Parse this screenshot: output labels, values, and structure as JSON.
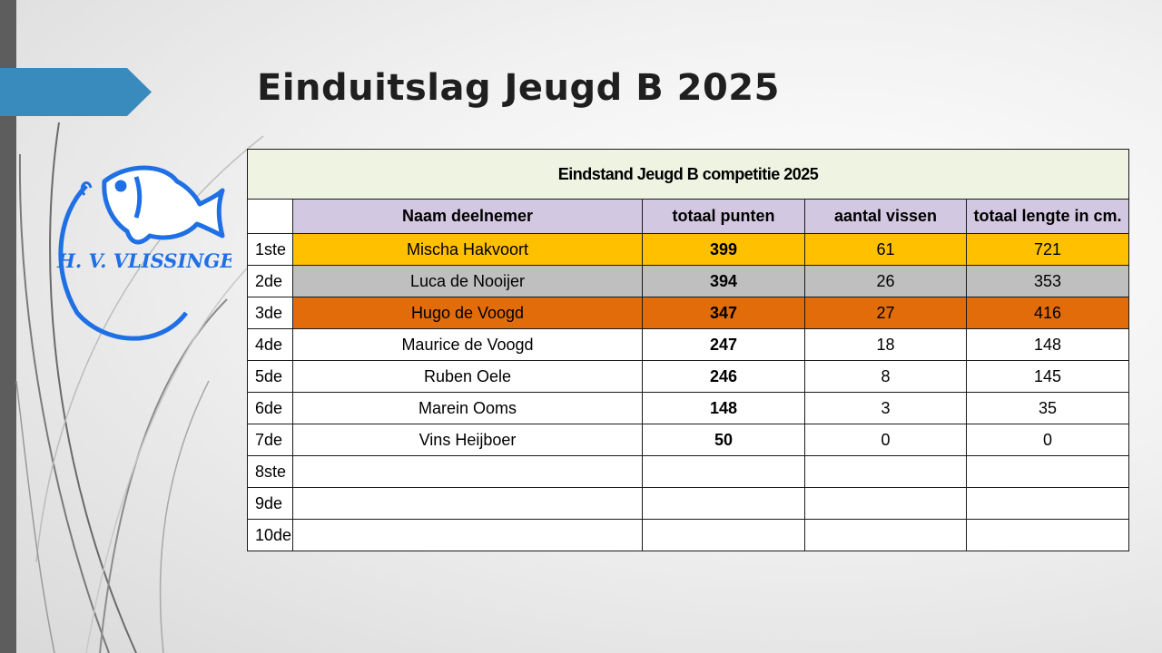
{
  "slide": {
    "title": "Einduitslag Jeugd B 2025"
  },
  "logo": {
    "text": "H. V. VLISSINGEN"
  },
  "colors": {
    "gold": "#ffc000",
    "silver": "#bfbfbf",
    "bronze": "#e36c0a",
    "header_bg": "#d3c8e1",
    "caption_bg": "#eef3e2",
    "logo_blue": "#1f6fe5",
    "accent_arrow": "#3a8bbd"
  },
  "table": {
    "caption": "Eindstand Jeugd B competitie 2025",
    "columns": [
      "",
      "Naam deelnemer",
      "totaal punten",
      "aantal vissen",
      "totaal lengte in cm."
    ],
    "rows": [
      {
        "rank": "1ste",
        "name": "Mischa Hakvoort",
        "points": "399",
        "fish": "61",
        "length": "721"
      },
      {
        "rank": "2de",
        "name": "Luca de Nooijer",
        "points": "394",
        "fish": "26",
        "length": "353"
      },
      {
        "rank": "3de",
        "name": "Hugo de Voogd",
        "points": "347",
        "fish": "27",
        "length": "416"
      },
      {
        "rank": "4de",
        "name": "Maurice de Voogd",
        "points": "247",
        "fish": "18",
        "length": "148"
      },
      {
        "rank": "5de",
        "name": "Ruben Oele",
        "points": "246",
        "fish": "8",
        "length": "145"
      },
      {
        "rank": "6de",
        "name": "Marein Ooms",
        "points": "148",
        "fish": "3",
        "length": "35"
      },
      {
        "rank": "7de",
        "name": "Vins Heijboer",
        "points": "50",
        "fish": "0",
        "length": "0"
      },
      {
        "rank": "8ste",
        "name": "",
        "points": "",
        "fish": "",
        "length": ""
      },
      {
        "rank": "9de",
        "name": "",
        "points": "",
        "fish": "",
        "length": ""
      },
      {
        "rank": "10de",
        "name": "",
        "points": "",
        "fish": "",
        "length": ""
      }
    ]
  }
}
